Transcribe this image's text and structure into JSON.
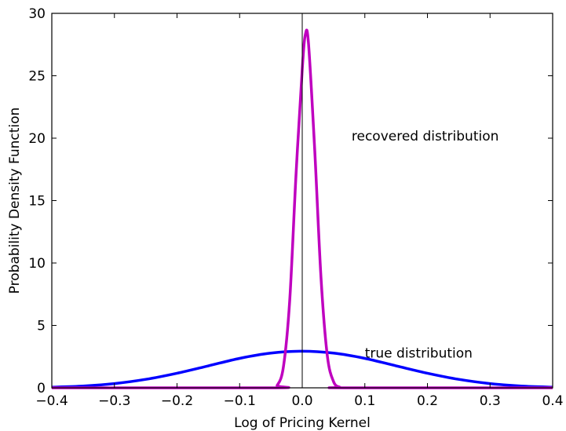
{
  "chart_data": {
    "type": "line",
    "title": "",
    "xlabel": "Log of Pricing Kernel",
    "ylabel": "Probability Density Function",
    "xlim": [
      -0.4,
      0.4
    ],
    "ylim": [
      0,
      30
    ],
    "x_ticks": [
      -0.4,
      -0.3,
      -0.2,
      -0.1,
      0.0,
      0.1,
      0.2,
      0.3,
      0.4
    ],
    "x_tick_labels": [
      "−0.4",
      "−0.3",
      "−0.2",
      "−0.1",
      "0.0",
      "0.1",
      "0.2",
      "0.3",
      "0.4"
    ],
    "y_ticks": [
      0,
      5,
      10,
      15,
      20,
      25,
      30
    ],
    "y_tick_labels": [
      "0",
      "5",
      "10",
      "15",
      "20",
      "25",
      "30"
    ],
    "grid": false,
    "vertical_reference_line_x": 0.0,
    "series": [
      {
        "label": "true distribution",
        "color": "#0000ff",
        "x": [
          -0.4,
          -0.35,
          -0.3,
          -0.25,
          -0.2,
          -0.15,
          -0.1,
          -0.05,
          0.0,
          0.05,
          0.1,
          0.15,
          0.2,
          0.25,
          0.3,
          0.35,
          0.4
        ],
        "y": [
          0.05,
          0.14,
          0.34,
          0.68,
          1.17,
          1.76,
          2.36,
          2.78,
          2.93,
          2.78,
          2.36,
          1.76,
          1.17,
          0.68,
          0.34,
          0.14,
          0.05
        ]
      },
      {
        "label": "recovered distribution",
        "color": "#bf00bf",
        "x": [
          -0.4,
          -0.05,
          -0.04,
          -0.03,
          -0.02,
          -0.01,
          0.0,
          0.005,
          0.01,
          0.02,
          0.03,
          0.04,
          0.05,
          0.06,
          0.07,
          0.4
        ],
        "y": [
          0,
          0,
          0.2,
          1.7,
          7.0,
          17.0,
          25.5,
          28.3,
          27.6,
          19.0,
          8.8,
          2.6,
          0.5,
          0.05,
          0,
          0
        ]
      }
    ],
    "annotations": [
      {
        "text": "recovered distribution",
        "x": 0.04,
        "y": 20.2
      },
      {
        "text": "true distribution",
        "x": 0.1,
        "y": 2.8
      }
    ]
  }
}
